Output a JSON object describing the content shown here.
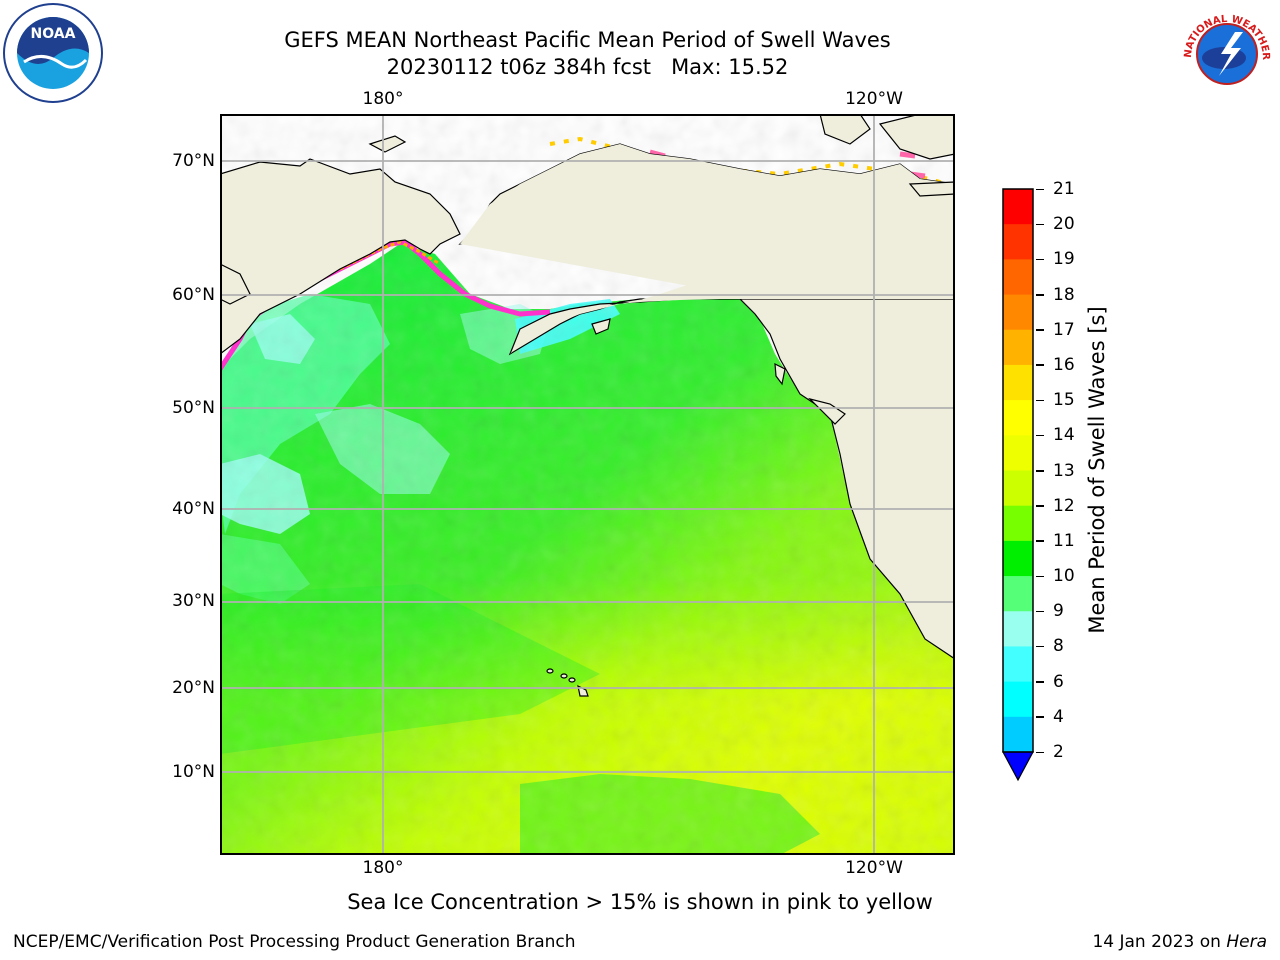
{
  "header": {
    "title_line1": "GEFS MEAN Northeast Pacific Mean Period of Swell Waves",
    "title_line2": "20230112 t06z 384h fcst   Max: 15.52"
  },
  "logos": {
    "left": "noaa-logo",
    "right": "national-weather-service-logo",
    "right_text": "NATIONAL WEATHER SERVICE",
    "left_text": "NOAA"
  },
  "map": {
    "lon_labels": [
      "180°",
      "120°W"
    ],
    "lat_labels": [
      "70°N",
      "60°N",
      "50°N",
      "40°N",
      "30°N",
      "20°N",
      "10°N"
    ],
    "land_color": "#efeedd",
    "grid_color": "#b0b0b0"
  },
  "colorbar": {
    "label": "Mean Period of Swell Waves [s]",
    "ticks": [
      "21",
      "20",
      "19",
      "18",
      "17",
      "16",
      "15",
      "14",
      "13",
      "12",
      "11",
      "10",
      "9",
      "8",
      "6",
      "4",
      "2"
    ],
    "colors": [
      "#ff0000",
      "#ff3300",
      "#ff6600",
      "#ff8800",
      "#ffb300",
      "#ffe100",
      "#ffff00",
      "#eeff00",
      "#ccff00",
      "#77ff00",
      "#00ee00",
      "#55ff77",
      "#99ffee",
      "#44ffff",
      "#00ffff",
      "#00ccff",
      "#0088ff"
    ],
    "extend_color": "#0000ff"
  },
  "subtitle": "Sea Ice Concentration > 15% is shown in pink to yellow",
  "footer": {
    "left": "NCEP/EMC/Verification Post Processing Product Generation Branch",
    "right_date": "14 Jan 2023 on ",
    "right_host": "Hera"
  }
}
